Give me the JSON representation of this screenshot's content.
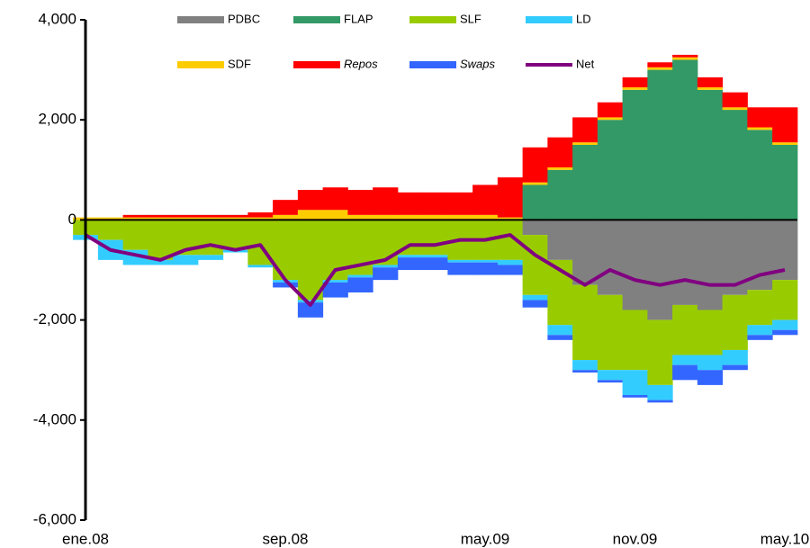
{
  "chart_data": {
    "type": "bar",
    "stacked": true,
    "categories": [
      "ene.08",
      null,
      null,
      null,
      null,
      null,
      null,
      null,
      "sep.08",
      null,
      null,
      null,
      null,
      null,
      null,
      null,
      "may.09",
      null,
      null,
      null,
      null,
      null,
      "nov.09",
      null,
      null,
      null,
      null,
      null,
      "may.10"
    ],
    "series": [
      {
        "name": "PDBC",
        "color": "#808080",
        "values": [
          0,
          0,
          0,
          0,
          0,
          0,
          0,
          0,
          0,
          0,
          0,
          0,
          0,
          0,
          0,
          0,
          0,
          0,
          -300,
          -800,
          -1300,
          -1500,
          -1800,
          -2000,
          -1700,
          -1800,
          -1500,
          -1400,
          -1200
        ]
      },
      {
        "name": "FLAP",
        "color": "#339966",
        "values": [
          0,
          0,
          0,
          0,
          0,
          0,
          0,
          0,
          0,
          0,
          0,
          0,
          0,
          0,
          0,
          0,
          0,
          0,
          700,
          1000,
          1500,
          2000,
          2600,
          3000,
          3200,
          2600,
          2200,
          1800,
          1500
        ]
      },
      {
        "name": "SLF",
        "color": "#99cc00",
        "values": [
          -300,
          -400,
          -600,
          -800,
          -700,
          -700,
          -600,
          -900,
          -1200,
          -1600,
          -1200,
          -1100,
          -900,
          -700,
          -700,
          -800,
          -800,
          -800,
          -1200,
          -1300,
          -1500,
          -1500,
          -1200,
          -1300,
          -1000,
          -900,
          -1100,
          -700,
          -800
        ]
      },
      {
        "name": "LD",
        "color": "#33ccff",
        "values": [
          -100,
          -400,
          -300,
          -100,
          -200,
          -100,
          -50,
          -50,
          -50,
          -50,
          -50,
          -50,
          -50,
          -50,
          -50,
          -50,
          -50,
          -100,
          -100,
          -200,
          -200,
          -200,
          -500,
          -300,
          -200,
          -300,
          -300,
          -200,
          -200
        ]
      },
      {
        "name": "SDF",
        "color": "#ffcc00",
        "values": [
          50,
          50,
          50,
          50,
          50,
          50,
          50,
          50,
          100,
          200,
          200,
          100,
          100,
          100,
          100,
          100,
          100,
          50,
          50,
          50,
          50,
          50,
          50,
          50,
          50,
          50,
          50,
          50,
          50
        ]
      },
      {
        "name": "Repos",
        "color": "#ff0000",
        "values": [
          0,
          0,
          50,
          50,
          50,
          50,
          50,
          100,
          300,
          400,
          450,
          500,
          550,
          450,
          450,
          450,
          600,
          800,
          700,
          600,
          500,
          300,
          200,
          100,
          50,
          200,
          300,
          400,
          700
        ]
      },
      {
        "name": "Swaps",
        "color": "#3366ff",
        "values": [
          0,
          0,
          0,
          0,
          0,
          0,
          0,
          0,
          -100,
          -300,
          -300,
          -300,
          -250,
          -250,
          -250,
          -250,
          -250,
          -200,
          -150,
          -100,
          -50,
          -50,
          -50,
          -50,
          -300,
          -300,
          -100,
          -100,
          -100
        ]
      },
      {
        "name": "Net",
        "color": "#800080",
        "type": "line",
        "values": [
          -300,
          -600,
          -700,
          -800,
          -600,
          -500,
          -600,
          -500,
          -1200,
          -1700,
          -1000,
          -900,
          -800,
          -500,
          -500,
          -400,
          -400,
          -300,
          -700,
          -1000,
          -1300,
          -1000,
          -1200,
          -1300,
          -1200,
          -1300,
          -1300,
          -1100,
          -1000
        ]
      }
    ],
    "ylim": [
      -6000,
      4000
    ],
    "yticks": [
      {
        "value": -6000,
        "label": "-6,000"
      },
      {
        "value": -4000,
        "label": "-4,000"
      },
      {
        "value": -2000,
        "label": "-2,000"
      },
      0,
      {
        "value": 2000,
        "label": "2,000"
      },
      {
        "value": 4000,
        "label": "4,000"
      }
    ]
  }
}
